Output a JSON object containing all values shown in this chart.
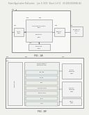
{
  "background_color": "#f0f0ec",
  "page_bg": "#f8f8f6",
  "header_text": "Patent Application Publication     Jan. 8, 2015   Sheet 1 of 11    US 2015/0008882 A1",
  "header_fontsize": 1.8,
  "fig_label_top": "FIG. 1A",
  "fig_label_bottom": "FIG. 1B",
  "line_color": "#666666",
  "box_face": "#f2f2f2",
  "box_edge": "#888888",
  "text_color": "#444444",
  "lw_outer": 0.5,
  "lw_inner": 0.4
}
